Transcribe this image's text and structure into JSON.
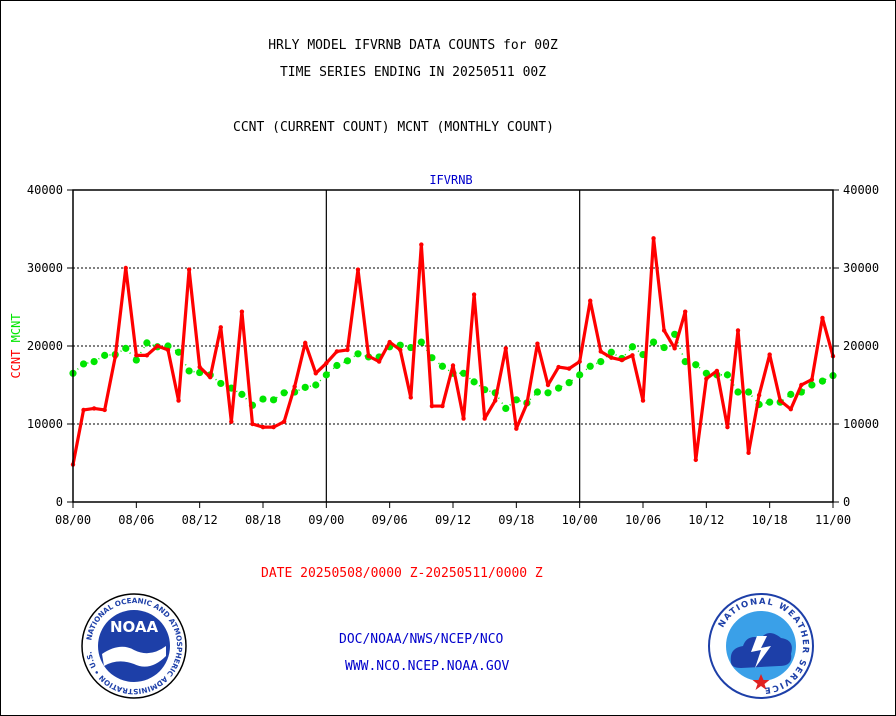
{
  "header": {
    "title1": "HRLY MODEL IFVRNB DATA COUNTS for 00Z",
    "title2": "TIME SERIES ENDING IN 20250511 00Z",
    "subtitle": "CCNT (CURRENT COUNT) MCNT (MONTHLY COUNT)"
  },
  "footer": {
    "date_range": "DATE 20250508/0000 Z-20250511/0000 Z",
    "org": "DOC/NOAA/NWS/NCEP/NCO",
    "url": "WWW.NCO.NCEP.NOAA.GOV"
  },
  "logos": {
    "noaa_ring_text": "NATIONAL OCEANIC AND ATMOSPHERIC ADMINISTRATION • U.S. DEPARTMENT OF COMMERCE •",
    "noaa_center": "NOAA",
    "nws_ring_text": "NATIONAL WEATHER SERVICE"
  },
  "colors": {
    "ccnt": "#ff0000",
    "mcnt": "#00e600",
    "frame": "#000000",
    "axis_label_blue": "#0000cc"
  },
  "chart_data": {
    "type": "line",
    "plot_label": "IFVRNB",
    "ylabel_parts": [
      {
        "text": "CCNT",
        "color": "#ff0000"
      },
      {
        "text": "MCNT",
        "color": "#00e600"
      }
    ],
    "ylim": [
      0,
      40000
    ],
    "y_ticks": [
      0,
      10000,
      20000,
      30000,
      40000
    ],
    "y_tick_labels": [
      "0",
      "10000",
      "20000",
      "30000",
      "40000"
    ],
    "x_range": [
      0,
      72
    ],
    "x_ticks": [
      0,
      6,
      12,
      18,
      24,
      30,
      36,
      42,
      48,
      54,
      60,
      66,
      72
    ],
    "x_tick_labels": [
      "08/00",
      "08/06",
      "08/12",
      "08/18",
      "09/00",
      "09/06",
      "09/12",
      "09/18",
      "10/00",
      "10/06",
      "10/12",
      "10/18",
      "11/00"
    ],
    "day_dividers": [
      24,
      48
    ],
    "gridlines_y": [
      10000,
      20000,
      30000
    ],
    "series": [
      {
        "name": "CCNT",
        "color": "#ff0000",
        "values": [
          4800,
          11800,
          12000,
          11800,
          18600,
          30000,
          18800,
          18800,
          20000,
          19500,
          13000,
          29800,
          17300,
          16000,
          22400,
          10300,
          24400,
          10000,
          9600,
          9600,
          10300,
          14800,
          20400,
          16500,
          17800,
          19300,
          19500,
          29800,
          18700,
          18000,
          20500,
          19500,
          13400,
          33000,
          12300,
          12300,
          17500,
          10700,
          26600,
          10700,
          13000,
          19700,
          9400,
          12600,
          20300,
          15000,
          17300,
          17100,
          18000,
          25800,
          19300,
          18500,
          18200,
          18800,
          13000,
          33800,
          22000,
          19700,
          24400,
          5400,
          15800,
          16800,
          9600,
          22000,
          6300,
          13700,
          18900,
          13000,
          11900,
          15000,
          15700,
          23600,
          18700
        ]
      },
      {
        "name": "MCNT",
        "color": "#00e600",
        "values": [
          16500,
          17700,
          18000,
          18800,
          18900,
          19700,
          18200,
          20400,
          19900,
          20000,
          19200,
          16800,
          16600,
          16300,
          15200,
          14600,
          13800,
          12400,
          13200,
          13100,
          14000,
          14100,
          14700,
          15000,
          16300,
          17500,
          18100,
          19000,
          18600,
          18600,
          19900,
          20100,
          19800,
          20500,
          18500,
          17400,
          16500,
          16500,
          15400,
          14400,
          14000,
          12000,
          13100,
          12700,
          14100,
          14000,
          14600,
          15300,
          16300,
          17400,
          18000,
          19200,
          18400,
          19900,
          18900,
          20500,
          19800,
          21500,
          18000,
          17600,
          16500,
          16300,
          16300,
          14100,
          14100,
          12500,
          12800,
          12800,
          13800,
          14100,
          15000,
          15500,
          16200
        ]
      }
    ]
  }
}
